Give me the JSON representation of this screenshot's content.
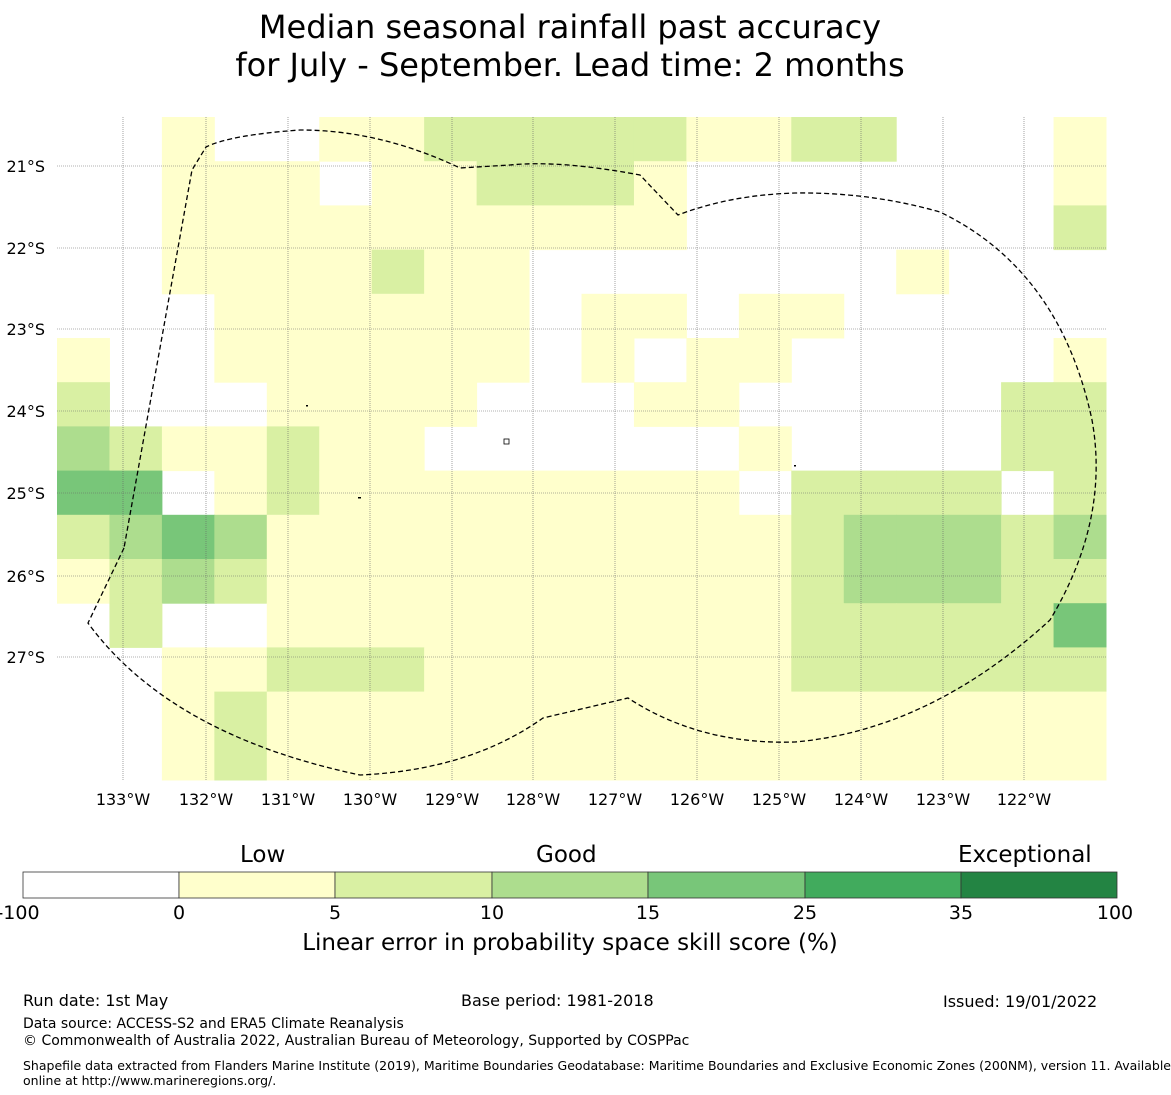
{
  "title_line1": "Median seasonal rainfall past accuracy",
  "title_line2": "for July - September. Lead time: 2 months",
  "map": {
    "lon_labels": [
      "133°W",
      "132°W",
      "131°W",
      "130°W",
      "129°W",
      "128°W",
      "127°W",
      "126°W",
      "125°W",
      "124°W",
      "123°W",
      "122°W"
    ],
    "lat_labels": [
      "21°S",
      "22°S",
      "23°S",
      "24°S",
      "25°S",
      "26°S",
      "27°S"
    ],
    "grid_rows": [
      "00100112222211220001",
      "00111011222100000001",
      "00111111111100000002",
      "00111121100000001000",
      "00011111101101100000",
      "10011111101011000001",
      "20001111000110000022",
      "32112110000001000022",
      "44012111111110222202",
      "23431111111111233323",
      "12321111111111233322",
      "02001111111111222224",
      "00112221111111222222",
      "00121111111111111111",
      "00121111111111111111"
    ],
    "class_colors": [
      "#ffffff",
      "#ffffcc",
      "#d9f0a3",
      "#addd8e",
      "#78c679",
      "#41ab5d",
      "#238443"
    ]
  },
  "colorbar": {
    "categories": [
      "Low",
      "Good",
      "Exceptional"
    ],
    "ticks": [
      "-100",
      "0",
      "5",
      "10",
      "15",
      "25",
      "35",
      "100"
    ],
    "colors": [
      "#ffffff",
      "#ffffcc",
      "#d9f0a3",
      "#addd8e",
      "#78c679",
      "#41ab5d",
      "#238443"
    ],
    "label": "Linear error in probability space skill score (%)"
  },
  "footer": {
    "run_date": "Run date: 1st May",
    "base_period": "Base period: 1981-2018",
    "issued": "Issued: 19/01/2022",
    "data_source": "Data source: ACCESS-S2 and ERA5 Climate Reanalysis",
    "copyright": "© Commonwealth of Australia 2022, Australian Bureau of Meteorology, Supported by COSPPac",
    "shapefile_line1": "Shapefile data extracted from Flanders Marine Institute (2019), Maritime Boundaries Geodatabase: Maritime Boundaries and Exclusive Economic Zones (200NM), version 11. Available",
    "shapefile_line2": "online at http://www.marineregions.org/."
  }
}
